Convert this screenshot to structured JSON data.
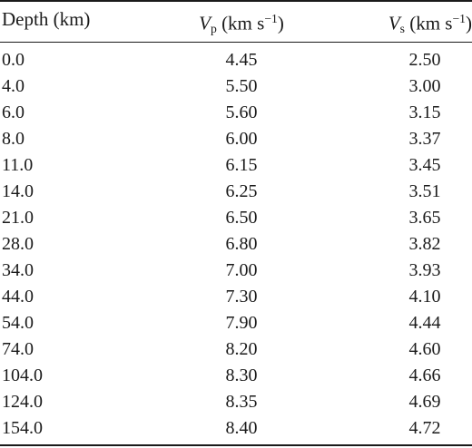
{
  "header": {
    "depth": "Depth (km)",
    "vp_symbol": "V",
    "vp_sub": "p",
    "vp_unit": " (km s",
    "vp_exp": "−1",
    "vp_close": ")",
    "vs_symbol": "V",
    "vs_sub": "s",
    "vs_unit": " (km s",
    "vs_exp": "−1",
    "vs_close": ")"
  },
  "rows": [
    {
      "depth": "0.0",
      "vp": "4.45",
      "vs": "2.50"
    },
    {
      "depth": "4.0",
      "vp": "5.50",
      "vs": "3.00"
    },
    {
      "depth": "6.0",
      "vp": "5.60",
      "vs": "3.15"
    },
    {
      "depth": "8.0",
      "vp": "6.00",
      "vs": "3.37"
    },
    {
      "depth": "11.0",
      "vp": "6.15",
      "vs": "3.45"
    },
    {
      "depth": "14.0",
      "vp": "6.25",
      "vs": "3.51"
    },
    {
      "depth": "21.0",
      "vp": "6.50",
      "vs": "3.65"
    },
    {
      "depth": "28.0",
      "vp": "6.80",
      "vs": "3.82"
    },
    {
      "depth": "34.0",
      "vp": "7.00",
      "vs": "3.93"
    },
    {
      "depth": "44.0",
      "vp": "7.30",
      "vs": "4.10"
    },
    {
      "depth": "54.0",
      "vp": "7.90",
      "vs": "4.44"
    },
    {
      "depth": "74.0",
      "vp": "8.20",
      "vs": "4.60"
    },
    {
      "depth": "104.0",
      "vp": "8.30",
      "vs": "4.66"
    },
    {
      "depth": "124.0",
      "vp": "8.35",
      "vs": "4.69"
    },
    {
      "depth": "154.0",
      "vp": "8.40",
      "vs": "4.72"
    }
  ]
}
